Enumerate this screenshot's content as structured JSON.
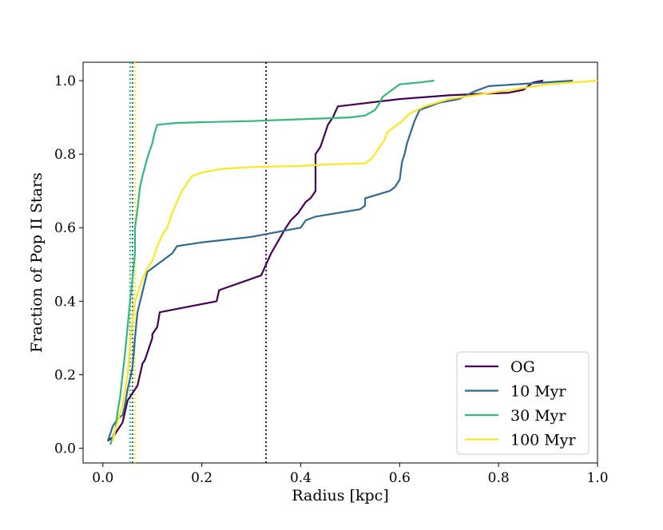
{
  "chart_data": {
    "type": "line",
    "xlabel": "Radius [kpc]",
    "ylabel": "Fraction of Pop II Stars",
    "xlim": [
      -0.04,
      1.0
    ],
    "ylim": [
      -0.04,
      1.05
    ],
    "xticks": [
      "0.0",
      "0.2",
      "0.4",
      "0.6",
      "0.8",
      "1.0"
    ],
    "yticks": [
      "0.0",
      "0.2",
      "0.4",
      "0.6",
      "0.8",
      "1.0"
    ],
    "legend_position": "lower right",
    "series": [
      {
        "name": "OG",
        "color": "#440154",
        "x": [
          0.01,
          0.02,
          0.025,
          0.03,
          0.04,
          0.045,
          0.05,
          0.06,
          0.065,
          0.07,
          0.08,
          0.085,
          0.09,
          0.1,
          0.1,
          0.11,
          0.115,
          0.23,
          0.235,
          0.32,
          0.33,
          0.34,
          0.37,
          0.38,
          0.395,
          0.41,
          0.42,
          0.43,
          0.43,
          0.44,
          0.455,
          0.465,
          0.475,
          0.6,
          0.7,
          0.78,
          0.82,
          0.85,
          0.86,
          0.87,
          0.89
        ],
        "y": [
          0.02,
          0.03,
          0.04,
          0.05,
          0.07,
          0.1,
          0.13,
          0.15,
          0.16,
          0.17,
          0.23,
          0.24,
          0.26,
          0.3,
          0.31,
          0.33,
          0.37,
          0.4,
          0.43,
          0.47,
          0.5,
          0.53,
          0.6,
          0.62,
          0.64,
          0.67,
          0.68,
          0.7,
          0.8,
          0.82,
          0.88,
          0.9,
          0.93,
          0.95,
          0.96,
          0.965,
          0.967,
          0.975,
          0.985,
          0.995,
          1.0
        ]
      },
      {
        "name": "10 Myr",
        "color": "#31688e",
        "x": [
          0.01,
          0.015,
          0.02,
          0.025,
          0.03,
          0.04,
          0.045,
          0.05,
          0.055,
          0.06,
          0.065,
          0.07,
          0.09,
          0.1,
          0.12,
          0.14,
          0.15,
          0.2,
          0.3,
          0.4,
          0.41,
          0.43,
          0.52,
          0.53,
          0.53,
          0.58,
          0.59,
          0.6,
          0.605,
          0.61,
          0.615,
          0.62,
          0.625,
          0.63,
          0.64,
          0.66,
          0.68,
          0.72,
          0.75,
          0.78,
          0.95
        ],
        "y": [
          0.02,
          0.04,
          0.06,
          0.07,
          0.08,
          0.09,
          0.12,
          0.16,
          0.19,
          0.22,
          0.3,
          0.37,
          0.48,
          0.49,
          0.51,
          0.53,
          0.55,
          0.56,
          0.575,
          0.6,
          0.62,
          0.63,
          0.65,
          0.66,
          0.68,
          0.7,
          0.71,
          0.73,
          0.78,
          0.8,
          0.83,
          0.85,
          0.87,
          0.89,
          0.92,
          0.93,
          0.94,
          0.95,
          0.97,
          0.985,
          1.0
        ]
      },
      {
        "name": "30 Myr",
        "color": "#35b779",
        "x": [
          0.015,
          0.025,
          0.03,
          0.035,
          0.04,
          0.045,
          0.05,
          0.055,
          0.06,
          0.065,
          0.065,
          0.07,
          0.075,
          0.08,
          0.09,
          0.095,
          0.1,
          0.105,
          0.11,
          0.15,
          0.2,
          0.3,
          0.4,
          0.5,
          0.53,
          0.55,
          0.56,
          0.565,
          0.57,
          0.58,
          0.59,
          0.6,
          0.64,
          0.67
        ],
        "y": [
          0.01,
          0.05,
          0.1,
          0.14,
          0.2,
          0.26,
          0.33,
          0.4,
          0.46,
          0.53,
          0.6,
          0.65,
          0.71,
          0.74,
          0.79,
          0.81,
          0.83,
          0.86,
          0.88,
          0.885,
          0.887,
          0.89,
          0.895,
          0.9,
          0.905,
          0.92,
          0.94,
          0.955,
          0.96,
          0.97,
          0.98,
          0.99,
          0.995,
          1.0
        ]
      },
      {
        "name": "100 Myr",
        "color": "#fde725",
        "x": [
          0.02,
          0.025,
          0.03,
          0.04,
          0.05,
          0.055,
          0.06,
          0.065,
          0.07,
          0.08,
          0.09,
          0.1,
          0.11,
          0.12,
          0.13,
          0.14,
          0.15,
          0.16,
          0.17,
          0.18,
          0.2,
          0.22,
          0.24,
          0.3,
          0.4,
          0.45,
          0.53,
          0.535,
          0.545,
          0.55,
          0.56,
          0.57,
          0.575,
          0.59,
          0.605,
          0.62,
          0.65,
          0.7,
          0.8,
          0.9,
          1.0
        ],
        "y": [
          0.02,
          0.05,
          0.07,
          0.12,
          0.2,
          0.28,
          0.35,
          0.4,
          0.42,
          0.46,
          0.49,
          0.51,
          0.55,
          0.58,
          0.6,
          0.64,
          0.67,
          0.7,
          0.72,
          0.74,
          0.75,
          0.755,
          0.76,
          0.765,
          0.768,
          0.772,
          0.775,
          0.78,
          0.79,
          0.8,
          0.82,
          0.84,
          0.86,
          0.875,
          0.89,
          0.91,
          0.93,
          0.95,
          0.97,
          0.99,
          1.0
        ]
      }
    ],
    "vlines": [
      {
        "x": 0.055,
        "color": "#35b779",
        "style": "dotted"
      },
      {
        "x": 0.06,
        "color": "#31688e",
        "style": "dotted"
      },
      {
        "x": 0.065,
        "color": "#fde725",
        "style": "dotted"
      },
      {
        "x": 0.33,
        "color": "#440154",
        "style": "dotted"
      }
    ]
  }
}
